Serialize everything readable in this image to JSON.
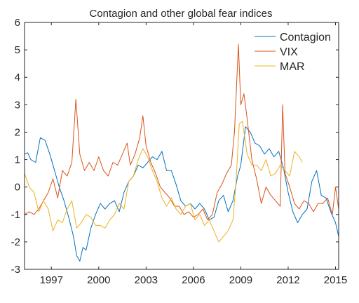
{
  "chart_data": {
    "type": "line",
    "title": "Contagion and other global fear indices",
    "xlabel": "",
    "ylabel": "",
    "xlim": [
      1995.3,
      2015.2
    ],
    "ylim": [
      -3,
      6
    ],
    "xticks": [
      1997,
      2000,
      2003,
      2006,
      2009,
      2012,
      2015
    ],
    "xtick_labels": [
      "1997",
      "2000",
      "2003",
      "2006",
      "2009",
      "2012",
      "2015"
    ],
    "yticks": [
      -3,
      -2,
      -1,
      0,
      1,
      2,
      3,
      4,
      5,
      6
    ],
    "ytick_labels": [
      "-3",
      "-2",
      "-1",
      "0",
      "1",
      "2",
      "3",
      "4",
      "5",
      "6"
    ],
    "grid": false,
    "legend_position": "top-right",
    "series": [
      {
        "name": "Contagion",
        "color": "#0072BD",
        "x": [
          1995.3,
          1995.5,
          1995.7,
          1996.0,
          1996.3,
          1996.6,
          1996.9,
          1997.2,
          1997.5,
          1997.8,
          1998.1,
          1998.4,
          1998.6,
          1998.8,
          1999.0,
          1999.2,
          1999.5,
          1999.8,
          2000.1,
          2000.4,
          2000.7,
          2001.0,
          2001.3,
          2001.6,
          2001.9,
          2002.2,
          2002.5,
          2002.8,
          2003.1,
          2003.4,
          2003.7,
          2004.0,
          2004.3,
          2004.6,
          2004.9,
          2005.2,
          2005.5,
          2005.8,
          2006.1,
          2006.4,
          2006.7,
          2007.0,
          2007.3,
          2007.6,
          2007.9,
          2008.2,
          2008.5,
          2008.8,
          2009.0,
          2009.3,
          2009.6,
          2009.9,
          2010.2,
          2010.5,
          2010.8,
          2011.1,
          2011.4,
          2011.7,
          2012.0,
          2012.3,
          2012.6,
          2012.9,
          2013.2,
          2013.5,
          2013.8,
          2014.1,
          2014.4,
          2014.7,
          2015.0,
          2015.2
        ],
        "values": [
          1.2,
          1.25,
          1.0,
          0.9,
          1.8,
          1.7,
          1.2,
          0.6,
          0.0,
          -0.5,
          -1.1,
          -1.8,
          -2.5,
          -2.7,
          -2.2,
          -2.3,
          -1.5,
          -1.0,
          -0.6,
          -0.8,
          -0.6,
          -0.5,
          -0.9,
          -0.2,
          0.2,
          0.4,
          0.8,
          0.7,
          0.9,
          1.1,
          1.0,
          1.3,
          0.6,
          0.6,
          0.1,
          -0.5,
          -0.7,
          -0.6,
          -0.8,
          -0.6,
          -0.8,
          -1.2,
          -1.1,
          -0.5,
          -0.3,
          -0.9,
          -0.5,
          0.4,
          0.8,
          2.2,
          2.0,
          1.6,
          1.5,
          1.2,
          1.4,
          1.1,
          1.3,
          0.7,
          -0.2,
          -0.9,
          -1.3,
          -1.0,
          -0.8,
          0.2,
          0.6,
          -0.3,
          -0.4,
          -0.9,
          -1.3,
          -1.8
        ]
      },
      {
        "name": "VIX",
        "color": "#D95319",
        "x": [
          1995.3,
          1995.6,
          1995.9,
          1996.2,
          1996.5,
          1996.8,
          1997.1,
          1997.4,
          1997.7,
          1998.0,
          1998.3,
          1998.55,
          1998.8,
          1999.1,
          1999.4,
          1999.7,
          2000.0,
          2000.3,
          2000.6,
          2000.9,
          2001.2,
          2001.5,
          2001.8,
          2002.0,
          2002.3,
          2002.6,
          2002.8,
          2003.0,
          2003.3,
          2003.6,
          2003.9,
          2004.2,
          2004.5,
          2004.8,
          2005.1,
          2005.4,
          2005.7,
          2006.0,
          2006.3,
          2006.6,
          2006.9,
          2007.2,
          2007.5,
          2007.8,
          2008.1,
          2008.4,
          2008.6,
          2008.85,
          2009.0,
          2009.2,
          2009.4,
          2009.7,
          2010.0,
          2010.3,
          2010.6,
          2010.9,
          2011.2,
          2011.5,
          2011.65,
          2011.8,
          2012.1,
          2012.4,
          2012.7,
          2013.0,
          2013.3,
          2013.6,
          2013.9,
          2014.2,
          2014.5,
          2014.8,
          2015.0,
          2015.2
        ],
        "values": [
          -1.0,
          -0.9,
          -1.0,
          -0.8,
          -0.5,
          -0.2,
          0.3,
          -0.4,
          0.6,
          0.4,
          0.9,
          3.2,
          1.2,
          0.6,
          0.9,
          0.6,
          1.1,
          0.6,
          0.4,
          0.9,
          0.8,
          1.2,
          1.6,
          0.8,
          1.2,
          1.8,
          2.6,
          1.5,
          0.9,
          0.5,
          0.0,
          -0.2,
          -0.4,
          -0.7,
          -0.7,
          -1.0,
          -0.9,
          -1.1,
          -1.0,
          -0.8,
          -1.2,
          -1.0,
          -0.2,
          0.1,
          0.5,
          0.8,
          2.0,
          5.2,
          3.0,
          3.4,
          2.5,
          1.0,
          0.3,
          -0.6,
          0.0,
          -0.3,
          -0.5,
          -0.7,
          3.0,
          0.5,
          0.0,
          -0.6,
          -0.8,
          -0.5,
          -0.6,
          -0.9,
          -0.6,
          -0.6,
          -0.4,
          -1.0,
          0.0,
          -0.8
        ]
      },
      {
        "name": "MAR",
        "color": "#EDB120",
        "x": [
          1995.3,
          1995.6,
          1995.9,
          1996.2,
          1996.5,
          1996.8,
          1997.1,
          1997.4,
          1997.7,
          1998.0,
          1998.3,
          1998.6,
          1998.9,
          1999.2,
          1999.5,
          1999.8,
          2000.1,
          2000.4,
          2000.7,
          2001.0,
          2001.3,
          2001.6,
          2001.9,
          2002.2,
          2002.5,
          2002.8,
          2003.1,
          2003.4,
          2003.7,
          2004.0,
          2004.3,
          2004.6,
          2004.9,
          2005.2,
          2005.5,
          2005.8,
          2006.1,
          2006.4,
          2006.7,
          2007.0,
          2007.3,
          2007.6,
          2007.9,
          2008.2,
          2008.5,
          2008.7,
          2008.9,
          2009.1,
          2009.4,
          2009.7,
          2010.0,
          2010.3,
          2010.6,
          2010.9,
          2011.2,
          2011.5,
          2011.8,
          2012.1,
          2012.4,
          2012.7,
          2012.9
        ],
        "values": [
          0.5,
          0.0,
          -0.2,
          -0.9,
          -0.5,
          -0.8,
          -1.6,
          -1.2,
          -1.3,
          -0.8,
          -0.5,
          -1.5,
          -1.3,
          -1.0,
          -1.1,
          -1.4,
          -1.4,
          -1.5,
          -1.2,
          -1.0,
          -0.6,
          -0.8,
          0.2,
          0.4,
          1.0,
          1.4,
          1.1,
          0.6,
          0.2,
          -0.4,
          -0.7,
          -0.4,
          -0.8,
          -1.0,
          -0.7,
          -0.6,
          -1.2,
          -1.0,
          -1.4,
          -1.2,
          -1.6,
          -2.0,
          -1.8,
          -1.6,
          -1.2,
          0.2,
          2.3,
          2.4,
          1.2,
          0.8,
          0.8,
          0.6,
          1.0,
          0.4,
          0.5,
          0.8,
          0.6,
          0.4,
          1.3,
          1.1,
          0.9
        ]
      }
    ]
  }
}
